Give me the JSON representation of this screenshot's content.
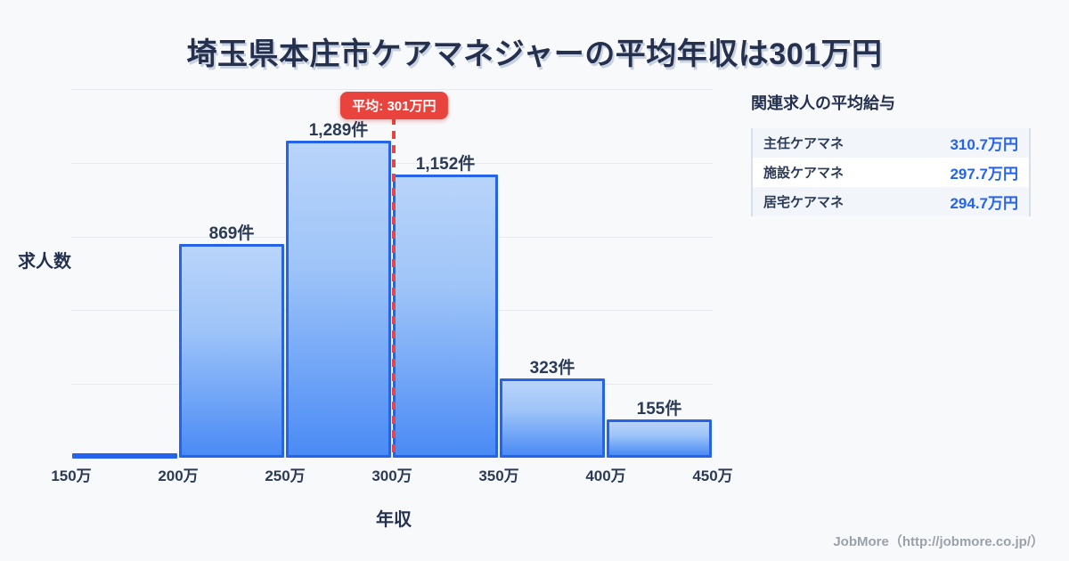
{
  "title": "埼玉県本庄市ケアマネジャーの平均年収は301万円",
  "chart_data": {
    "type": "bar",
    "title": "埼玉県本庄市ケアマネジャーの平均年収は301万円",
    "xlabel": "年収",
    "ylabel": "求人数",
    "bin_edge_labels": [
      "150万",
      "200万",
      "250万",
      "300万",
      "350万",
      "400万",
      "450万"
    ],
    "bins": [
      {
        "range": "150万-200万",
        "value": 0,
        "label": ""
      },
      {
        "range": "200万-250万",
        "value": 869,
        "label": "869件"
      },
      {
        "range": "250万-300万",
        "value": 1289,
        "label": "1,289件"
      },
      {
        "range": "300万-350万",
        "value": 1152,
        "label": "1,152件"
      },
      {
        "range": "350万-400万",
        "value": 323,
        "label": "323件"
      },
      {
        "range": "400万-450万",
        "value": 155,
        "label": "155件"
      }
    ],
    "ylim": [
      0,
      1500
    ],
    "grid_step": 300,
    "grid_on": true,
    "average_line": {
      "value_man_yen": 301,
      "label": "平均: 301万円"
    },
    "colors": {
      "bar_border": "#2563eb",
      "bar_fill_top": "#b9d4fa",
      "bar_fill_bottom": "#4b8bf5",
      "average_red": "#e8433c",
      "label_text": "#2b3a55",
      "value_blue": "#2563eb",
      "background": "#f8f9fb"
    }
  },
  "side_panel": {
    "heading": "関連求人の平均給与",
    "rows": [
      {
        "label": "主任ケアマネ",
        "value": "310.7万円"
      },
      {
        "label": "施設ケアマネ",
        "value": "297.7万円"
      },
      {
        "label": "居宅ケアマネ",
        "value": "294.7万円"
      }
    ]
  },
  "footer": {
    "credit": "JobMore（http://jobmore.co.jp/）"
  }
}
